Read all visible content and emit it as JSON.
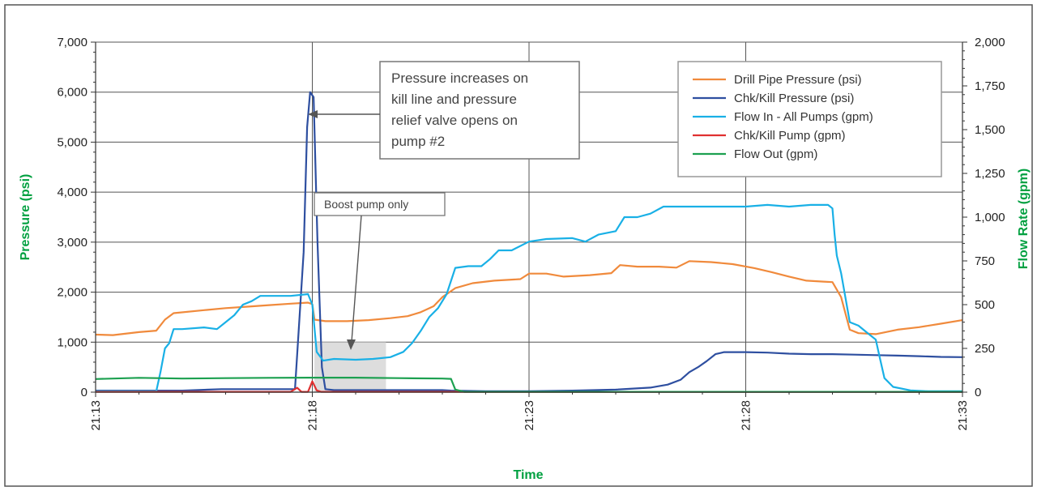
{
  "chart_data": {
    "type": "line",
    "title": "",
    "xlabel": "Time",
    "ylabel_left": "Pressure (psi)",
    "ylabel_right": "Flow Rate (gpm)",
    "xlim": [
      0,
      20
    ],
    "x_tick_values": [
      0,
      5,
      10,
      15,
      20
    ],
    "x_tick_labels": [
      "21:13",
      "21:18",
      "21:23",
      "21:28",
      "21:33"
    ],
    "ylim_left": [
      0,
      7000
    ],
    "y_ticks_left": [
      0,
      1000,
      2000,
      3000,
      4000,
      5000,
      6000,
      7000
    ],
    "y_tick_labels_left": [
      "0",
      "1,000",
      "2,000",
      "3,000",
      "4,000",
      "5,000",
      "6,000",
      "7,000"
    ],
    "ylim_right": [
      0,
      2000
    ],
    "y_ticks_right": [
      0,
      250,
      500,
      750,
      1000,
      1250,
      1500,
      1750,
      2000
    ],
    "y_tick_labels_right": [
      "0",
      "250",
      "500",
      "750",
      "1,000",
      "1,250",
      "1,500",
      "1,750",
      "2,000"
    ],
    "grid": true,
    "legend_position": "top-right",
    "series": [
      {
        "name": "Drill Pipe Pressure (psi)",
        "axis": "left",
        "color": "#f08a3c",
        "points": [
          [
            0,
            1150
          ],
          [
            0.4,
            1140
          ],
          [
            1,
            1200
          ],
          [
            1.4,
            1230
          ],
          [
            1.6,
            1450
          ],
          [
            1.8,
            1580
          ],
          [
            2.5,
            1640
          ],
          [
            3,
            1680
          ],
          [
            3.5,
            1710
          ],
          [
            4,
            1740
          ],
          [
            4.5,
            1770
          ],
          [
            4.9,
            1790
          ],
          [
            5,
            1760
          ],
          [
            5.05,
            1450
          ],
          [
            5.3,
            1420
          ],
          [
            5.8,
            1420
          ],
          [
            6.3,
            1440
          ],
          [
            6.8,
            1480
          ],
          [
            7.2,
            1520
          ],
          [
            7.5,
            1600
          ],
          [
            7.8,
            1720
          ],
          [
            8,
            1900
          ],
          [
            8.3,
            2080
          ],
          [
            8.7,
            2180
          ],
          [
            9.2,
            2230
          ],
          [
            9.8,
            2260
          ],
          [
            10,
            2370
          ],
          [
            10.4,
            2370
          ],
          [
            10.8,
            2310
          ],
          [
            11.4,
            2340
          ],
          [
            11.9,
            2380
          ],
          [
            12.1,
            2540
          ],
          [
            12.5,
            2510
          ],
          [
            13,
            2510
          ],
          [
            13.4,
            2490
          ],
          [
            13.7,
            2620
          ],
          [
            14.2,
            2600
          ],
          [
            14.7,
            2560
          ],
          [
            15.2,
            2480
          ],
          [
            15.6,
            2400
          ],
          [
            16,
            2310
          ],
          [
            16.4,
            2230
          ],
          [
            16.8,
            2210
          ],
          [
            17,
            2200
          ],
          [
            17.2,
            1900
          ],
          [
            17.4,
            1250
          ],
          [
            17.6,
            1180
          ],
          [
            18,
            1160
          ],
          [
            18.5,
            1250
          ],
          [
            19,
            1300
          ],
          [
            19.5,
            1370
          ],
          [
            20,
            1440
          ]
        ]
      },
      {
        "name": "Chk/Kill Pressure (psi)",
        "axis": "left",
        "color": "#2e4fa0",
        "points": [
          [
            0,
            30
          ],
          [
            2,
            30
          ],
          [
            2.9,
            60
          ],
          [
            4.3,
            60
          ],
          [
            4.6,
            60
          ],
          [
            4.8,
            2800
          ],
          [
            4.88,
            5300
          ],
          [
            4.95,
            6000
          ],
          [
            5.03,
            5900
          ],
          [
            5.12,
            3000
          ],
          [
            5.22,
            500
          ],
          [
            5.3,
            60
          ],
          [
            5.5,
            40
          ],
          [
            6.5,
            40
          ],
          [
            7.5,
            40
          ],
          [
            8,
            40
          ],
          [
            8.2,
            30
          ],
          [
            9,
            20
          ],
          [
            10,
            20
          ],
          [
            11,
            30
          ],
          [
            12,
            50
          ],
          [
            12.8,
            90
          ],
          [
            13.2,
            150
          ],
          [
            13.5,
            250
          ],
          [
            13.7,
            400
          ],
          [
            13.9,
            500
          ],
          [
            14.1,
            620
          ],
          [
            14.3,
            760
          ],
          [
            14.5,
            800
          ],
          [
            15,
            800
          ],
          [
            15.5,
            790
          ],
          [
            16,
            770
          ],
          [
            16.5,
            760
          ],
          [
            17,
            760
          ],
          [
            17.5,
            750
          ],
          [
            18,
            740
          ],
          [
            18.5,
            730
          ],
          [
            19,
            720
          ],
          [
            19.5,
            705
          ],
          [
            20,
            700
          ]
        ]
      },
      {
        "name": "Flow In - All Pumps (gpm)",
        "axis": "right",
        "color": "#19b0e6",
        "points": [
          [
            0,
            5
          ],
          [
            1.4,
            5
          ],
          [
            1.5,
            120
          ],
          [
            1.6,
            250
          ],
          [
            1.7,
            280
          ],
          [
            1.8,
            360
          ],
          [
            2,
            360
          ],
          [
            2.5,
            370
          ],
          [
            2.8,
            360
          ],
          [
            3,
            400
          ],
          [
            3.2,
            440
          ],
          [
            3.4,
            500
          ],
          [
            3.6,
            520
          ],
          [
            3.8,
            550
          ],
          [
            4,
            550
          ],
          [
            4.5,
            550
          ],
          [
            4.9,
            560
          ],
          [
            5,
            500
          ],
          [
            5.1,
            230
          ],
          [
            5.25,
            180
          ],
          [
            5.5,
            190
          ],
          [
            6,
            185
          ],
          [
            6.4,
            190
          ],
          [
            6.8,
            200
          ],
          [
            7.1,
            230
          ],
          [
            7.3,
            280
          ],
          [
            7.5,
            350
          ],
          [
            7.7,
            430
          ],
          [
            7.9,
            480
          ],
          [
            8.1,
            560
          ],
          [
            8.3,
            710
          ],
          [
            8.6,
            720
          ],
          [
            8.9,
            720
          ],
          [
            9.1,
            760
          ],
          [
            9.3,
            810
          ],
          [
            9.6,
            810
          ],
          [
            10,
            860
          ],
          [
            10.4,
            875
          ],
          [
            11,
            880
          ],
          [
            11.3,
            860
          ],
          [
            11.6,
            900
          ],
          [
            12,
            920
          ],
          [
            12.2,
            1000
          ],
          [
            12.5,
            1000
          ],
          [
            12.8,
            1020
          ],
          [
            13.1,
            1060
          ],
          [
            13.5,
            1060
          ],
          [
            14,
            1060
          ],
          [
            14.5,
            1060
          ],
          [
            15,
            1060
          ],
          [
            15.5,
            1070
          ],
          [
            16,
            1060
          ],
          [
            16.5,
            1070
          ],
          [
            16.9,
            1070
          ],
          [
            17,
            1050
          ],
          [
            17.05,
            900
          ],
          [
            17.1,
            780
          ],
          [
            17.2,
            680
          ],
          [
            17.4,
            400
          ],
          [
            17.6,
            380
          ],
          [
            17.8,
            340
          ],
          [
            18,
            300
          ],
          [
            18.1,
            190
          ],
          [
            18.2,
            80
          ],
          [
            18.4,
            30
          ],
          [
            18.8,
            10
          ],
          [
            19.2,
            5
          ],
          [
            20,
            5
          ]
        ]
      },
      {
        "name": "Chk/Kill Pump (gpm)",
        "axis": "right",
        "color": "#e03030",
        "points": [
          [
            0,
            2
          ],
          [
            4.5,
            2
          ],
          [
            4.65,
            25
          ],
          [
            4.75,
            2
          ],
          [
            4.9,
            2
          ],
          [
            5,
            62
          ],
          [
            5.1,
            10
          ],
          [
            5.2,
            2
          ],
          [
            20,
            2
          ]
        ]
      },
      {
        "name": "Flow Out (gpm)",
        "axis": "right",
        "color": "#1ca050",
        "points": [
          [
            0,
            75
          ],
          [
            1,
            82
          ],
          [
            2,
            78
          ],
          [
            3,
            80
          ],
          [
            4,
            82
          ],
          [
            5,
            83
          ],
          [
            6,
            83
          ],
          [
            7,
            80
          ],
          [
            8,
            78
          ],
          [
            8.2,
            76
          ],
          [
            8.3,
            15
          ],
          [
            8.5,
            2
          ],
          [
            9,
            2
          ],
          [
            20,
            2
          ]
        ]
      }
    ],
    "annotations": [
      {
        "text": [
          "Pressure increases on",
          "kill line and pressure",
          "relief valve opens on",
          "pump #2"
        ],
        "points_to": {
          "x": 5.0,
          "y_left": 5000
        }
      },
      {
        "text": [
          "Boost pump only"
        ],
        "points_to": {
          "x": 5.85,
          "y_left": 1000
        }
      }
    ],
    "shaded_region": {
      "x": [
        5.05,
        6.7
      ],
      "y_left": [
        0,
        1000
      ]
    }
  }
}
